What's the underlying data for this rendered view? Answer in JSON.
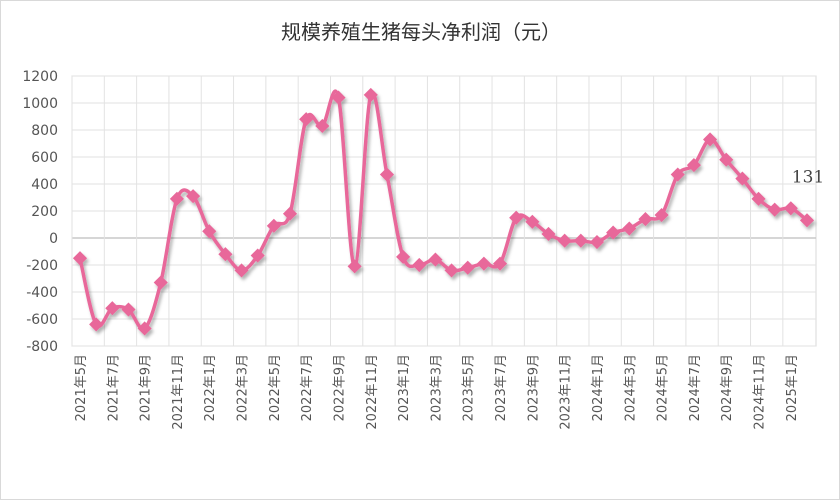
{
  "chart_data": {
    "type": "line",
    "title": "规模养殖生猪每头净利润（元）",
    "xlabel": "",
    "ylabel": "",
    "ylim": [
      -800,
      1200
    ],
    "yticks": [
      -800,
      -600,
      -400,
      -200,
      0,
      200,
      400,
      600,
      800,
      1000,
      1200
    ],
    "grid": true,
    "line_color": "#e8689a",
    "x": [
      "2021年5月",
      "2021年6月",
      "2021年7月",
      "2021年8月",
      "2021年9月",
      "2021年10月",
      "2021年11月",
      "2021年12月",
      "2022年1月",
      "2022年2月",
      "2022年3月",
      "2022年4月",
      "2022年5月",
      "2022年6月",
      "2022年7月",
      "2022年8月",
      "2022年9月",
      "2022年10月",
      "2022年11月",
      "2022年12月",
      "2023年1月",
      "2023年2月",
      "2023年3月",
      "2023年4月",
      "2023年5月",
      "2023年6月",
      "2023年7月",
      "2023年8月",
      "2023年9月",
      "2023年10月",
      "2023年11月",
      "2023年12月",
      "2024年1月",
      "2024年2月",
      "2024年3月",
      "2024年4月",
      "2024年5月",
      "2024年6月",
      "2024年7月",
      "2024年8月",
      "2024年9月",
      "2024年10月",
      "2024年11月",
      "2024年12月",
      "2025年1月",
      "2025年2月"
    ],
    "tick_labels": [
      "2021年5月",
      "2021年7月",
      "2021年9月",
      "2021年11月",
      "2022年1月",
      "2022年3月",
      "2022年5月",
      "2022年7月",
      "2022年9月",
      "2022年11月",
      "2023年1月",
      "2023年3月",
      "2023年5月",
      "2023年7月",
      "2023年9月",
      "2023年11月",
      "2024年1月",
      "2024年3月",
      "2024年5月",
      "2024年7月",
      "2024年9月",
      "2024年11月",
      "2025年1月"
    ],
    "values": [
      -150,
      -640,
      -520,
      -530,
      -670,
      -330,
      290,
      310,
      50,
      -120,
      -240,
      -130,
      90,
      180,
      880,
      830,
      1040,
      -210,
      1060,
      470,
      -140,
      -200,
      -160,
      -240,
      -220,
      -190,
      -190,
      150,
      120,
      30,
      -20,
      -20,
      -30,
      40,
      70,
      140,
      170,
      470,
      540,
      730,
      580,
      440,
      290,
      210,
      220,
      131
    ],
    "annotations": [
      {
        "label": "131"
      }
    ]
  }
}
